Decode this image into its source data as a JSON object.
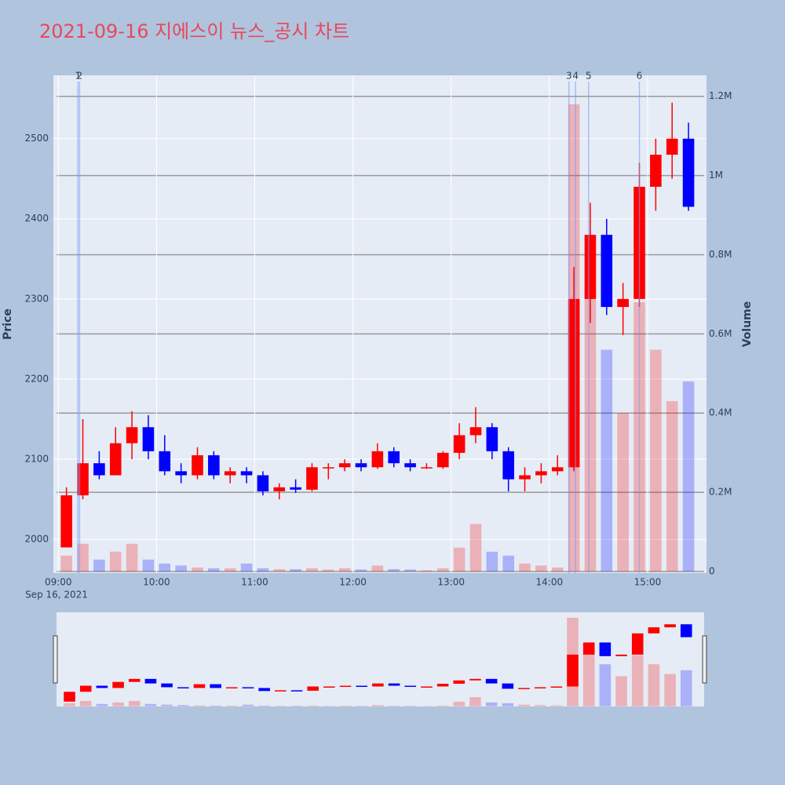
{
  "chart_data": {
    "type": "candlestick",
    "title": "2021-09-16 지에스이 뉴스_공시 차트",
    "y_label": "Price",
    "y2_label": "Volume",
    "date_label": "Sep 16, 2021",
    "up_color": "#ff0000",
    "down_color": "#0000ff",
    "xlim": [
      "08:57",
      "15:36"
    ],
    "xticks": [
      "09:00",
      "10:00",
      "11:00",
      "12:00",
      "13:00",
      "14:00",
      "15:00"
    ],
    "ylim": [
      1958,
      2579
    ],
    "yticks": [
      2000,
      2100,
      2200,
      2300,
      2400,
      2500
    ],
    "y2lim": [
      -4000,
      1253000
    ],
    "y2ticks": [
      {
        "value": 0,
        "label": "0"
      },
      {
        "value": 200000,
        "label": "0.2M"
      },
      {
        "value": 400000,
        "label": "0.4M"
      },
      {
        "value": 600000,
        "label": "0.6M"
      },
      {
        "value": 800000,
        "label": "0.8M"
      },
      {
        "value": 1000000,
        "label": "1M"
      },
      {
        "value": 1200000,
        "label": "1.2M"
      }
    ],
    "x": [
      "09:00",
      "09:10",
      "09:20",
      "09:30",
      "09:40",
      "09:50",
      "10:00",
      "10:10",
      "10:20",
      "10:30",
      "10:40",
      "10:50",
      "11:00",
      "11:10",
      "11:20",
      "11:30",
      "11:40",
      "11:50",
      "12:00",
      "12:10",
      "12:20",
      "12:30",
      "12:40",
      "12:50",
      "13:00",
      "13:10",
      "13:20",
      "13:30",
      "13:40",
      "13:50",
      "14:00",
      "14:10",
      "14:20",
      "14:30",
      "14:40",
      "14:50",
      "15:00",
      "15:10",
      "15:20"
    ],
    "open": [
      1990,
      2055,
      2095,
      2080,
      2120,
      2140,
      2110,
      2085,
      2080,
      2105,
      2080,
      2085,
      2080,
      2060,
      2065,
      2062,
      2090,
      2090,
      2095,
      2090,
      2110,
      2095,
      2090,
      2090,
      2108,
      2130,
      2140,
      2110,
      2075,
      2080,
      2085,
      2090,
      2300,
      2380,
      2290,
      2300,
      2440,
      2480,
      2500
    ],
    "high": [
      2065,
      2150,
      2110,
      2140,
      2160,
      2155,
      2130,
      2095,
      2115,
      2110,
      2090,
      2090,
      2085,
      2070,
      2075,
      2095,
      2095,
      2100,
      2100,
      2120,
      2115,
      2100,
      2095,
      2110,
      2145,
      2165,
      2145,
      2115,
      2090,
      2095,
      2105,
      2340,
      2420,
      2400,
      2320,
      2470,
      2500,
      2545,
      2520
    ],
    "low": [
      1990,
      2050,
      2075,
      2080,
      2100,
      2100,
      2080,
      2070,
      2075,
      2075,
      2070,
      2070,
      2055,
      2050,
      2058,
      2060,
      2075,
      2085,
      2085,
      2088,
      2090,
      2085,
      2088,
      2088,
      2100,
      2120,
      2100,
      2060,
      2060,
      2070,
      2080,
      2085,
      2270,
      2280,
      2255,
      2290,
      2410,
      2450,
      2410
    ],
    "close": [
      2055,
      2095,
      2080,
      2120,
      2140,
      2110,
      2085,
      2080,
      2105,
      2080,
      2085,
      2080,
      2060,
      2065,
      2062,
      2090,
      2090,
      2095,
      2090,
      2110,
      2095,
      2090,
      2090,
      2108,
      2130,
      2140,
      2110,
      2075,
      2080,
      2085,
      2090,
      2300,
      2380,
      2290,
      2300,
      2440,
      2480,
      2500,
      2415
    ],
    "volume": [
      40000,
      70000,
      30000,
      50000,
      70000,
      30000,
      20000,
      15000,
      10000,
      8000,
      8000,
      20000,
      8000,
      6000,
      6000,
      8000,
      5000,
      8000,
      5000,
      15000,
      6000,
      5000,
      3000,
      8000,
      60000,
      120000,
      50000,
      40000,
      20000,
      15000,
      10000,
      1180000,
      720000,
      560000,
      400000,
      680000,
      560000,
      430000,
      480000
    ],
    "annotations": [
      {
        "label": "1",
        "x": "09:12"
      },
      {
        "label": "2",
        "x": "09:13"
      },
      {
        "label": "3",
        "x": "14:12"
      },
      {
        "label": "4",
        "x": "14:16"
      },
      {
        "label": "5",
        "x": "14:24"
      },
      {
        "label": "6",
        "x": "14:55"
      }
    ]
  }
}
